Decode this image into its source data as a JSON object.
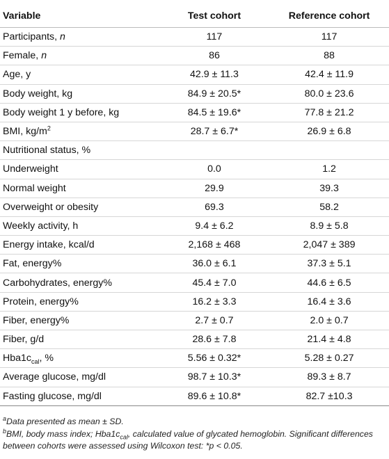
{
  "table": {
    "headers": [
      "Variable",
      "Test cohort",
      "Reference cohort"
    ],
    "rows": [
      {
        "label": "Participants, ",
        "label_em": "n",
        "test": "117",
        "ref": "117"
      },
      {
        "label": "Female, ",
        "label_em": "n",
        "test": "86",
        "ref": "88"
      },
      {
        "label": "Age, y",
        "test": "42.9 ± 11.3",
        "ref": "42.4 ± 11.9"
      },
      {
        "label": "Body weight, kg",
        "test": "84.9 ± 20.5*",
        "ref": "80.0 ± 23.6"
      },
      {
        "label": "Body weight 1 y before, kg",
        "test": "84.5 ± 19.6*",
        "ref": "77.8 ± 21.2"
      },
      {
        "label": "BMI, kg/m",
        "label_sup": "2",
        "test": "28.7 ± 6.7*",
        "ref": "26.9 ± 6.8"
      },
      {
        "label": "Nutritional status, %",
        "test": "",
        "ref": ""
      },
      {
        "label": "Underweight",
        "test": "0.0",
        "ref": "1.2"
      },
      {
        "label": "Normal weight",
        "test": "29.9",
        "ref": "39.3"
      },
      {
        "label": "Overweight or obesity",
        "test": "69.3",
        "ref": "58.2"
      },
      {
        "label": "Weekly activity, h",
        "test": "9.4 ± 6.2",
        "ref": "8.9 ± 5.8"
      },
      {
        "label": "Energy intake, kcal/d",
        "test": "2,168 ± 468",
        "ref": "2,047 ± 389"
      },
      {
        "label": "Fat, energy%",
        "test": "36.0 ± 6.1",
        "ref": "37.3 ± 5.1"
      },
      {
        "label": "Carbohydrates, energy%",
        "test": "45.4 ± 7.0",
        "ref": "44.6 ± 6.5"
      },
      {
        "label": "Protein, energy%",
        "test": "16.2 ± 3.3",
        "ref": "16.4 ± 3.6"
      },
      {
        "label": "Fiber, energy%",
        "test": "2.7 ± 0.7",
        "ref": "2.0 ± 0.7"
      },
      {
        "label": "Fiber, g/d",
        "test": "28.6 ± 7.8",
        "ref": "21.4 ± 4.8"
      },
      {
        "label": "Hba1c",
        "label_sub": "cal",
        "label_after": ", %",
        "test": "5.56 ± 0.32*",
        "ref": "5.28 ± 0.27"
      },
      {
        "label": "Average glucose, mg/dl",
        "test": "98.7 ± 10.3*",
        "ref": "89.3 ± 8.7"
      },
      {
        "label": "Fasting glucose, mg/dl",
        "test": "89.6 ± 10.8*",
        "ref": "82.7 ±10.3"
      }
    ]
  },
  "footnotes": {
    "a_marker": "a",
    "a_text": "Data presented as mean ± SD.",
    "b_marker": "b",
    "b_text_1": "BMI, body mass index; Hba1c",
    "b_sub": "cal",
    "b_text_2": ", calculated value of glycated hemoglobin. Significant differences between cohorts were assessed using Wilcoxon test: *p < 0.05."
  }
}
